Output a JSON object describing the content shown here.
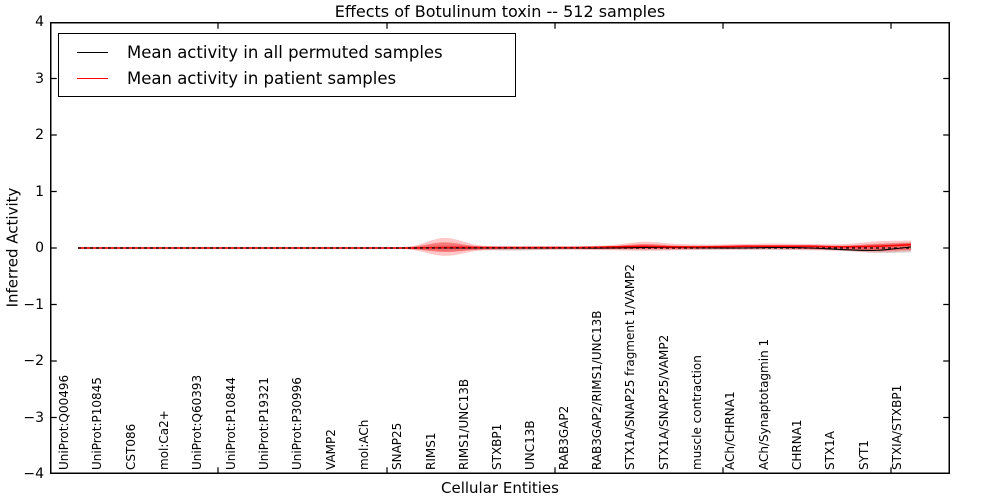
{
  "title": "Effects of Botulinum toxin -- 512 samples",
  "axes": {
    "xlabel": "Cellular Entities",
    "ylabel": "Inferred Activity",
    "y_ticks": [
      "4",
      "3",
      "2",
      "1",
      "0",
      "−1",
      "−2",
      "−3",
      "−4"
    ],
    "ylim": [
      -4,
      4
    ]
  },
  "legend": {
    "position": "upper-left",
    "entries": [
      {
        "label": "Mean activity in all permuted samples",
        "color": "#000000"
      },
      {
        "label": "Mean activity in patient samples",
        "color": "#ff0000"
      }
    ]
  },
  "chart_data": {
    "type": "line",
    "title": "Effects of Botulinum toxin -- 512 samples",
    "xlabel": "Cellular Entities",
    "ylabel": "Inferred Activity",
    "ylim": [
      -4,
      4
    ],
    "grid": false,
    "legend_position": "upper-left",
    "categories": [
      "UniProt:Q00496",
      "UniProt:P10845",
      "CST086",
      "mol:Ca2+",
      "UniProt:Q60393",
      "UniProt:P10844",
      "UniProt:P19321",
      "UniProt:P30996",
      "VAMP2",
      "mol:ACh",
      "SNAP25",
      "RIMS1",
      "RIMS1/UNC13B",
      "STXBP1",
      "UNC13B",
      "RAB3GAP2",
      "RAB3GAP2/RIMS1/UNC13B",
      "STX1A/SNAP25 fragment 1/VAMP2",
      "STX1A/SNAP25/VAMP2",
      "muscle contraction",
      "ACh/CHRNA1",
      "ACh/Synaptotagmin 1",
      "CHRNA1",
      "STX1A",
      "SYT1",
      "STXIA/STXBP1"
    ],
    "series": [
      {
        "name": "Mean activity in all permuted samples",
        "color": "#000000",
        "values": [
          0,
          0,
          0,
          0,
          0,
          0,
          0,
          0,
          0,
          0,
          0,
          0,
          0,
          0,
          0,
          0,
          0,
          0.01,
          0.01,
          0,
          0,
          0.01,
          0,
          -0.03,
          -0.04,
          0.02
        ]
      },
      {
        "name": "Mean activity in patient samples",
        "color": "#ff0000",
        "values": [
          0,
          0,
          0,
          0,
          0,
          0,
          0,
          0,
          0,
          0,
          0,
          0.01,
          0.01,
          0.01,
          0.01,
          0.01,
          0.02,
          0.03,
          0.02,
          0.02,
          0.03,
          0.03,
          0.03,
          0.02,
          0.03,
          0.06
        ]
      }
    ],
    "bands": [
      {
        "name": "permuted-spread",
        "color": "rgba(0,0,0,0.12)",
        "upper": [
          0.02,
          0.02,
          0.02,
          0.02,
          0.02,
          0.02,
          0.02,
          0.02,
          0.02,
          0.02,
          0.02,
          0.05,
          0.03,
          0.02,
          0.02,
          0.02,
          0.02,
          0.03,
          0.03,
          0.03,
          0.03,
          0.03,
          0.03,
          0.04,
          0.08,
          0.1
        ],
        "lower": [
          -0.02,
          -0.02,
          -0.02,
          -0.02,
          -0.02,
          -0.02,
          -0.02,
          -0.02,
          -0.02,
          -0.02,
          -0.02,
          -0.05,
          -0.03,
          -0.05,
          -0.03,
          -0.02,
          -0.02,
          -0.03,
          -0.03,
          -0.03,
          -0.03,
          -0.03,
          -0.03,
          -0.05,
          -0.09,
          -0.08
        ]
      },
      {
        "name": "patient-spread-outer",
        "color": "rgba(255,0,0,0.22)",
        "upper": [
          0.02,
          0.02,
          0.02,
          0.02,
          0.02,
          0.02,
          0.02,
          0.02,
          0.02,
          0.02,
          0.03,
          0.18,
          0.05,
          0.03,
          0.03,
          0.03,
          0.05,
          0.11,
          0.07,
          0.06,
          0.07,
          0.08,
          0.07,
          0.07,
          0.12,
          0.13
        ],
        "lower": [
          -0.02,
          -0.02,
          -0.02,
          -0.02,
          -0.02,
          -0.02,
          -0.02,
          -0.02,
          -0.02,
          -0.02,
          -0.03,
          -0.14,
          -0.05,
          -0.03,
          -0.03,
          -0.03,
          -0.04,
          -0.05,
          -0.04,
          -0.03,
          -0.03,
          -0.03,
          -0.04,
          -0.05,
          -0.08,
          -0.06
        ]
      },
      {
        "name": "patient-spread-inner",
        "color": "rgba(255,0,0,0.38)",
        "upper": [
          0.01,
          0.01,
          0.01,
          0.01,
          0.01,
          0.01,
          0.01,
          0.01,
          0.01,
          0.01,
          0.02,
          0.1,
          0.03,
          0.02,
          0.02,
          0.02,
          0.03,
          0.07,
          0.04,
          0.04,
          0.05,
          0.05,
          0.05,
          0.04,
          0.07,
          0.09
        ],
        "lower": [
          -0.01,
          -0.01,
          -0.01,
          -0.01,
          -0.01,
          -0.01,
          -0.01,
          -0.01,
          -0.01,
          -0.01,
          -0.02,
          -0.07,
          -0.03,
          -0.02,
          -0.02,
          -0.02,
          -0.02,
          -0.02,
          -0.02,
          -0.01,
          -0.01,
          -0.01,
          -0.02,
          -0.03,
          -0.05,
          -0.03
        ]
      }
    ],
    "zero_line": {
      "style": "dashed",
      "color": "#000000",
      "y": 0
    }
  }
}
